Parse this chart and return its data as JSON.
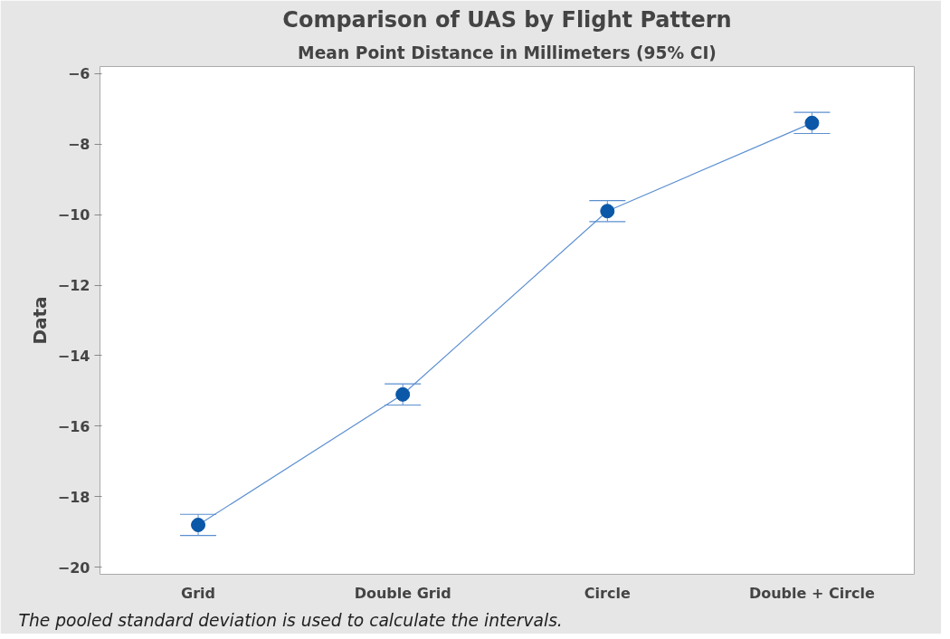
{
  "chart_data": {
    "type": "line",
    "title": "Comparison of UAS by Flight Pattern",
    "subtitle": "Mean Point Distance in Millimeters (95% CI)",
    "ylabel": "Data",
    "categories": [
      "Grid",
      "Double Grid",
      "Circle",
      "Double + Circle"
    ],
    "series": [
      {
        "color": "#0b57a8",
        "values": [
          -18.8,
          -15.1,
          -9.9,
          -7.4
        ],
        "errors": [
          0.3,
          0.3,
          0.3,
          0.3
        ]
      }
    ],
    "ylim": [
      -20.2,
      -5.8
    ],
    "yticks": [
      -20,
      -18,
      -16,
      -14,
      -12,
      -10,
      -8,
      -6
    ],
    "grid": false,
    "marker": "circle",
    "line_style": "solid",
    "annotations": [
      "The pooled standard deviation is used to calculate the intervals."
    ]
  }
}
